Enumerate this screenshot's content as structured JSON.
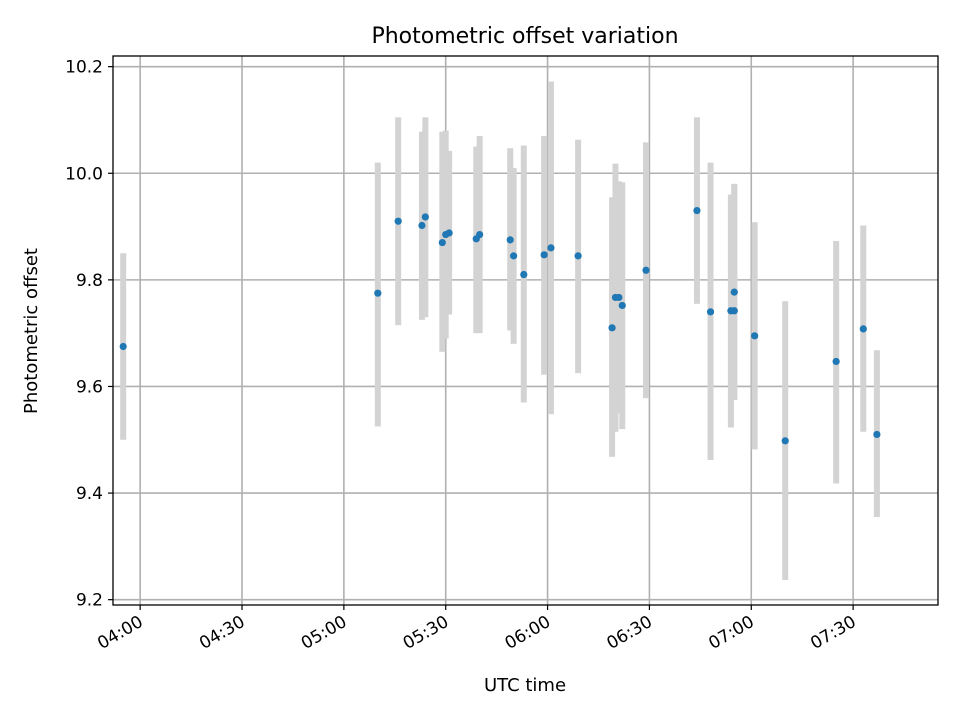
{
  "chart_data": {
    "type": "scatter",
    "title": "Photometric offset variation",
    "xlabel": "UTC time",
    "ylabel": "Photometric offset",
    "xlim": [
      "03:52",
      "07:55"
    ],
    "ylim": [
      9.19,
      10.22
    ],
    "x_ticks": [
      "04:00",
      "04:30",
      "05:00",
      "05:30",
      "06:00",
      "06:30",
      "07:00",
      "07:30"
    ],
    "y_ticks": [
      "9.2",
      "9.4",
      "9.6",
      "9.8",
      "10.0",
      "10.2"
    ],
    "grid": true,
    "colors": {
      "points": "#1f77b4",
      "error_bars": "#d3d3d3",
      "grid": "#b0b0b0"
    },
    "series": [
      {
        "points": [
          {
            "x": "03:55",
            "y": 9.675,
            "low": 9.5,
            "high": 9.85
          },
          {
            "x": "05:10",
            "y": 9.775,
            "low": 9.525,
            "high": 10.02
          },
          {
            "x": "05:16",
            "y": 9.91,
            "low": 9.715,
            "high": 10.105
          },
          {
            "x": "05:23",
            "y": 9.902,
            "low": 9.725,
            "high": 10.078
          },
          {
            "x": "05:24",
            "y": 9.918,
            "low": 9.73,
            "high": 10.105
          },
          {
            "x": "05:29",
            "y": 9.87,
            "low": 9.665,
            "high": 10.078
          },
          {
            "x": "05:30",
            "y": 9.885,
            "low": 9.69,
            "high": 10.08
          },
          {
            "x": "05:31",
            "y": 9.888,
            "low": 9.735,
            "high": 10.042
          },
          {
            "x": "05:39",
            "y": 9.877,
            "low": 9.7,
            "high": 10.05
          },
          {
            "x": "05:40",
            "y": 9.885,
            "low": 9.7,
            "high": 10.07
          },
          {
            "x": "05:49",
            "y": 9.875,
            "low": 9.705,
            "high": 10.047
          },
          {
            "x": "05:50",
            "y": 9.845,
            "low": 9.68,
            "high": 10.01
          },
          {
            "x": "05:53",
            "y": 9.81,
            "low": 9.57,
            "high": 10.052
          },
          {
            "x": "05:59",
            "y": 9.847,
            "low": 9.622,
            "high": 10.07
          },
          {
            "x": "06:01",
            "y": 9.86,
            "low": 9.548,
            "high": 10.172
          },
          {
            "x": "06:09",
            "y": 9.845,
            "low": 9.625,
            "high": 10.063
          },
          {
            "x": "06:19",
            "y": 9.71,
            "low": 9.468,
            "high": 9.955
          },
          {
            "x": "06:20",
            "y": 9.767,
            "low": 9.515,
            "high": 10.018
          },
          {
            "x": "06:21",
            "y": 9.767,
            "low": 9.55,
            "high": 9.985
          },
          {
            "x": "06:22",
            "y": 9.752,
            "low": 9.52,
            "high": 9.983
          },
          {
            "x": "06:29",
            "y": 9.818,
            "low": 9.578,
            "high": 10.058
          },
          {
            "x": "06:44",
            "y": 9.93,
            "low": 9.755,
            "high": 10.105
          },
          {
            "x": "06:48",
            "y": 9.74,
            "low": 9.462,
            "high": 10.02
          },
          {
            "x": "06:54",
            "y": 9.742,
            "low": 9.523,
            "high": 9.96
          },
          {
            "x": "06:55",
            "y": 9.742,
            "low": 9.575,
            "high": 9.98
          },
          {
            "x": "06:55",
            "y": 9.777,
            "low": 9.575,
            "high": 9.98
          },
          {
            "x": "07:01",
            "y": 9.695,
            "low": 9.482,
            "high": 9.908
          },
          {
            "x": "07:10",
            "y": 9.498,
            "low": 9.237,
            "high": 9.76
          },
          {
            "x": "07:25",
            "y": 9.647,
            "low": 9.418,
            "high": 9.873
          },
          {
            "x": "07:33",
            "y": 9.708,
            "low": 9.515,
            "high": 9.902
          },
          {
            "x": "07:37",
            "y": 9.51,
            "low": 9.355,
            "high": 9.668
          }
        ]
      }
    ]
  }
}
